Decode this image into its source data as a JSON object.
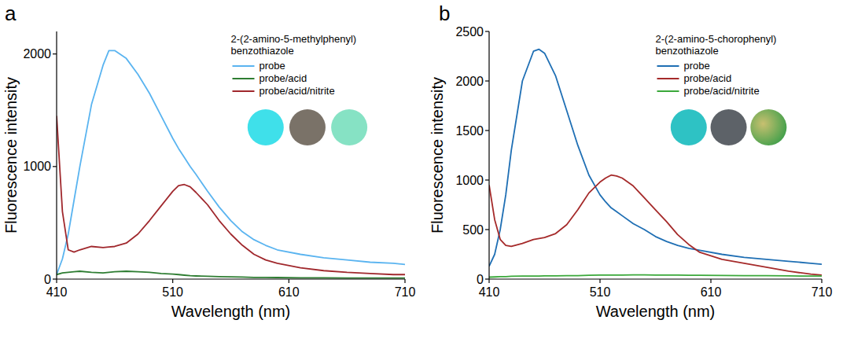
{
  "chart_data": [
    {
      "type": "line",
      "label": "a",
      "legend_title": "2-(2-amino-5-methylphenyl) benzothiazole",
      "x_label": "Wavelength (nm)",
      "y_label": "Fluorescence intensity",
      "x": [
        410,
        415,
        420,
        425,
        430,
        440,
        450,
        455,
        460,
        470,
        480,
        490,
        500,
        510,
        515,
        520,
        525,
        530,
        540,
        550,
        560,
        570,
        580,
        590,
        600,
        620,
        640,
        660,
        680,
        700,
        710
      ],
      "series": [
        {
          "name": "probe",
          "color": "#5ab4f0",
          "values": [
            40,
            180,
            400,
            700,
            1000,
            1550,
            1900,
            2030,
            2030,
            1960,
            1820,
            1650,
            1450,
            1250,
            1160,
            1080,
            1000,
            930,
            780,
            640,
            520,
            420,
            350,
            300,
            260,
            220,
            190,
            170,
            150,
            140,
            130
          ]
        },
        {
          "name": "probe/acid",
          "color": "#2e7d32",
          "values": [
            40,
            55,
            60,
            65,
            70,
            60,
            55,
            60,
            65,
            70,
            65,
            60,
            50,
            45,
            40,
            35,
            30,
            28,
            25,
            22,
            20,
            18,
            15,
            15,
            14,
            12,
            12,
            10,
            10,
            10,
            10
          ]
        },
        {
          "name": "probe/acid/nitrite",
          "color": "#a0282d",
          "values": [
            1450,
            600,
            260,
            240,
            260,
            290,
            280,
            285,
            290,
            320,
            400,
            520,
            650,
            780,
            830,
            840,
            820,
            770,
            660,
            520,
            400,
            300,
            220,
            170,
            140,
            100,
            75,
            60,
            50,
            40,
            40
          ]
        }
      ],
      "xlim": [
        410,
        710
      ],
      "xticks": [
        410,
        510,
        610,
        710
      ],
      "ylim": [
        0,
        2200
      ],
      "yticks": [
        0,
        1000,
        2000
      ],
      "grid": false,
      "legend": "upper right"
    },
    {
      "type": "line",
      "label": "b",
      "legend_title": "2-(2-amino-5-chorophenyl) benzothiazole",
      "x_label": "Wavelength (nm)",
      "y_label": "Fluorescence intensity",
      "x": [
        410,
        415,
        420,
        425,
        430,
        440,
        450,
        455,
        460,
        470,
        480,
        490,
        500,
        510,
        515,
        520,
        525,
        530,
        540,
        550,
        560,
        570,
        580,
        590,
        600,
        620,
        640,
        660,
        680,
        700,
        710
      ],
      "series": [
        {
          "name": "probe",
          "color": "#1f6fb4",
          "values": [
            130,
            250,
            500,
            850,
            1300,
            2000,
            2300,
            2320,
            2280,
            2050,
            1700,
            1350,
            1050,
            850,
            780,
            720,
            680,
            640,
            560,
            500,
            430,
            380,
            340,
            310,
            290,
            250,
            220,
            200,
            180,
            160,
            150
          ]
        },
        {
          "name": "probe/acid",
          "color": "#a52a2a",
          "values": [
            950,
            600,
            400,
            340,
            330,
            360,
            400,
            410,
            420,
            460,
            550,
            700,
            870,
            980,
            1020,
            1050,
            1040,
            1020,
            940,
            820,
            700,
            580,
            450,
            350,
            270,
            200,
            160,
            120,
            80,
            50,
            40
          ]
        },
        {
          "name": "probe/acid/nitrite",
          "color": "#3aa83a",
          "values": [
            20,
            22,
            25,
            25,
            28,
            30,
            30,
            30,
            32,
            32,
            35,
            35,
            38,
            40,
            40,
            40,
            40,
            40,
            42,
            42,
            40,
            40,
            40,
            38,
            38,
            36,
            35,
            35,
            32,
            30,
            30
          ]
        }
      ],
      "xlim": [
        410,
        710
      ],
      "xticks": [
        410,
        510,
        610,
        710
      ],
      "ylim": [
        0,
        2500
      ],
      "yticks": [
        0,
        500,
        1000,
        1500,
        2000,
        2500
      ],
      "grid": false,
      "legend": "upper right"
    }
  ]
}
